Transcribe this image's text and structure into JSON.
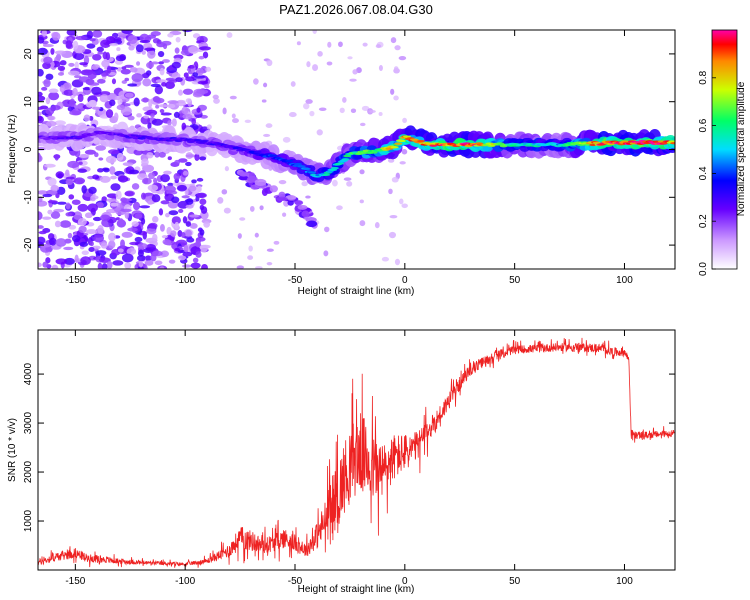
{
  "title": "PAZ1.2026.067.08.04.G30",
  "chart_data": [
    {
      "type": "heatmap",
      "title": "PAZ1.2026.067.08.04.G30",
      "xlabel": "Height of straight line (km)",
      "ylabel": "Frequency (Hz)",
      "xlim": [
        -167,
        123
      ],
      "ylim": [
        -25,
        25
      ],
      "xticks": [
        -150,
        -100,
        -50,
        0,
        50,
        100
      ],
      "yticks": [
        -20,
        -10,
        0,
        10,
        20
      ],
      "colorbar": {
        "label": "Normalized spectral amplitude",
        "range": [
          0.0,
          1.0
        ],
        "ticks": [
          0.0,
          0.2,
          0.4,
          0.6,
          0.8
        ]
      },
      "ridge": {
        "x": [
          -165,
          -150,
          -140,
          -120,
          -100,
          -90,
          -80,
          -70,
          -60,
          -50,
          -40,
          -35,
          -30,
          -25,
          -20,
          -15,
          -10,
          -5,
          0,
          5,
          10,
          30,
          50,
          70,
          90,
          110,
          123
        ],
        "y": [
          2.5,
          2.5,
          3.5,
          2.5,
          2,
          1.5,
          0.5,
          -0.5,
          -1.5,
          -3,
          -5.5,
          -5,
          -3,
          -1,
          -0.5,
          -0.5,
          0,
          0.5,
          2.5,
          2,
          1,
          1,
          1,
          1,
          1.3,
          1.5,
          1.5
        ],
        "amplitude": [
          0.25,
          0.3,
          0.25,
          0.3,
          0.3,
          0.3,
          0.3,
          0.35,
          0.4,
          0.45,
          0.5,
          0.55,
          0.6,
          0.6,
          0.65,
          0.7,
          0.75,
          0.8,
          0.85,
          0.9,
          0.9,
          0.95,
          0.6,
          0.5,
          0.95,
          1.0,
          0.9
        ]
      },
      "secondary_branch": {
        "x": [
          -75,
          -68,
          -60,
          -55,
          -50,
          -45,
          -40
        ],
        "y": [
          -5,
          -7,
          -9,
          -10.5,
          -11,
          -13.5,
          -16.5
        ]
      },
      "noise_region": {
        "x_range": [
          -167,
          -90
        ],
        "y_range": [
          -25,
          25
        ]
      }
    },
    {
      "type": "line",
      "xlabel": "Height of straight line (km)",
      "ylabel": "SNR (10 * v/v)",
      "xlim": [
        -167,
        123
      ],
      "ylim": [
        0,
        4900
      ],
      "xticks": [
        -150,
        -100,
        -50,
        0,
        50,
        100
      ],
      "yticks": [
        1000,
        2000,
        3000,
        4000
      ],
      "series": [
        {
          "name": "SNR",
          "color": "#ee2222",
          "x": [
            -167,
            -160,
            -150,
            -145,
            -130,
            -120,
            -100,
            -90,
            -80,
            -75,
            -70,
            -65,
            -60,
            -55,
            -50,
            -45,
            -40,
            -35,
            -30,
            -25,
            -20,
            -15,
            -10,
            -5,
            0,
            5,
            10,
            15,
            20,
            25,
            30,
            40,
            50,
            60,
            70,
            80,
            90,
            95,
            100,
            102,
            103,
            105,
            110,
            123
          ],
          "y": [
            150,
            250,
            350,
            250,
            180,
            150,
            120,
            180,
            400,
            650,
            600,
            500,
            550,
            650,
            550,
            400,
            700,
            1100,
            1600,
            2200,
            2400,
            2100,
            2000,
            2300,
            2400,
            2500,
            2800,
            3100,
            3450,
            3800,
            4100,
            4350,
            4500,
            4520,
            4550,
            4550,
            4520,
            4450,
            4450,
            4300,
            2800,
            2750,
            2750,
            2800
          ],
          "noise_amplitude": [
            100,
            120,
            150,
            120,
            80,
            60,
            50,
            80,
            200,
            350,
            300,
            250,
            250,
            300,
            250,
            200,
            400,
            700,
            1000,
            1100,
            1200,
            1000,
            850,
            700,
            550,
            450,
            350,
            300,
            250,
            200,
            170,
            150,
            120,
            120,
            120,
            120,
            130,
            130,
            120,
            120,
            110,
            110,
            100,
            100
          ]
        }
      ]
    }
  ]
}
